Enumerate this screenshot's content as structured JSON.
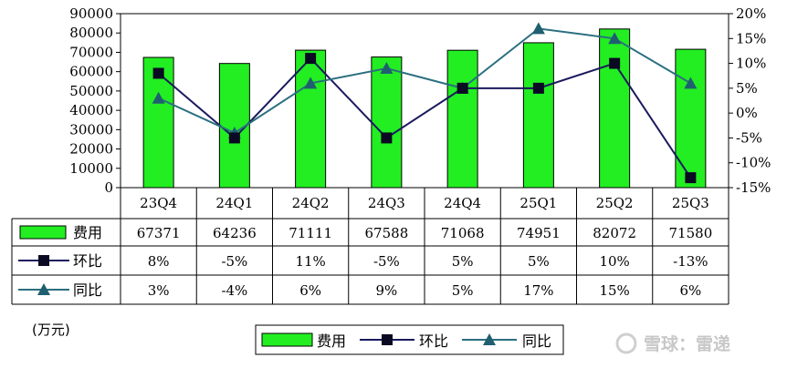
{
  "chart_data": {
    "type": "bar",
    "categories": [
      "23Q4",
      "24Q1",
      "24Q2",
      "24Q3",
      "24Q4",
      "25Q1",
      "25Q2",
      "25Q3"
    ],
    "series": [
      {
        "name": "费用",
        "type": "bar",
        "axis": "left",
        "color": "#22ee22",
        "values": [
          67371,
          64236,
          71111,
          67588,
          71068,
          74951,
          82072,
          71580
        ]
      },
      {
        "name": "环比",
        "type": "line",
        "axis": "right",
        "marker": "square",
        "color": "#1a1a5e",
        "values": [
          8,
          -5,
          11,
          -5,
          5,
          5,
          10,
          -13
        ]
      },
      {
        "name": "同比",
        "type": "line",
        "axis": "right",
        "marker": "triangle",
        "color": "#2a6f7f",
        "values": [
          3,
          -4,
          6,
          9,
          5,
          17,
          15,
          6
        ]
      }
    ],
    "y_left": {
      "min": 0,
      "max": 90000,
      "step": 10000,
      "ticks": [
        "0",
        "10000",
        "20000",
        "30000",
        "40000",
        "50000",
        "60000",
        "70000",
        "80000",
        "90000"
      ]
    },
    "y_right": {
      "min": -15,
      "max": 20,
      "step": 5,
      "ticks": [
        "-15%",
        "-10%",
        "-5%",
        "0%",
        "5%",
        "10%",
        "15%",
        "20%"
      ]
    },
    "table_rows": [
      {
        "label": "费用",
        "cells": [
          "67371",
          "64236",
          "71111",
          "67588",
          "71068",
          "74951",
          "82072",
          "71580"
        ]
      },
      {
        "label": "环比",
        "cells": [
          "8%",
          "-5%",
          "11%",
          "-5%",
          "5%",
          "5%",
          "10%",
          "-13%"
        ]
      },
      {
        "label": "同比",
        "cells": [
          "3%",
          "-4%",
          "6%",
          "9%",
          "5%",
          "17%",
          "15%",
          "6%"
        ]
      }
    ],
    "unit_label": "(万元)",
    "legend_position": "bottom",
    "grid": false
  },
  "watermark": "雪球：雷递"
}
